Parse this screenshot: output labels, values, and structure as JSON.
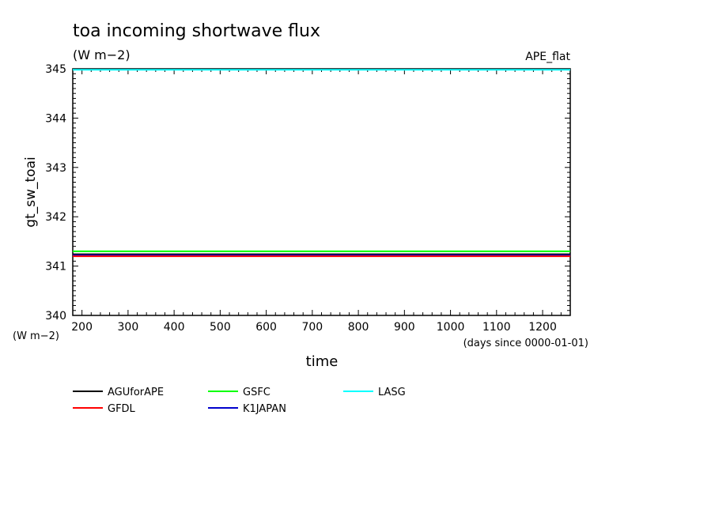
{
  "chart_data": {
    "type": "line",
    "title": "toa incoming shortwave flux",
    "title_units": "(W m−2)",
    "experiment": "APE_flat",
    "xlabel": "time",
    "x_units": "(days since 0000-01-01)",
    "ylabel": "gt_sw_toai",
    "y_units": "(W m−2)",
    "xlim": [
      180,
      1260
    ],
    "ylim": [
      340,
      345
    ],
    "x_ticks": [
      200,
      300,
      400,
      500,
      600,
      700,
      800,
      900,
      1000,
      1100,
      1200
    ],
    "y_ticks": [
      340,
      341,
      342,
      343,
      344,
      345
    ],
    "series": [
      {
        "name": "AGUforAPE",
        "color": "#000000",
        "x": [
          180,
          1260
        ],
        "y": [
          341.24,
          341.24
        ]
      },
      {
        "name": "GFDL",
        "color": "#ff0000",
        "x": [
          180,
          1260
        ],
        "y": [
          341.2,
          341.2
        ]
      },
      {
        "name": "GSFC",
        "color": "#00ff00",
        "x": [
          180,
          1260
        ],
        "y": [
          341.3,
          341.3
        ]
      },
      {
        "name": "K1JAPAN",
        "color": "#0000cc",
        "x": [
          180,
          1260
        ],
        "y": [
          341.22,
          341.22
        ]
      },
      {
        "name": "LASG",
        "color": "#00ffff",
        "x": [
          180,
          1260
        ],
        "y": [
          344.98,
          344.98
        ]
      }
    ],
    "legend_position": "bottom"
  }
}
